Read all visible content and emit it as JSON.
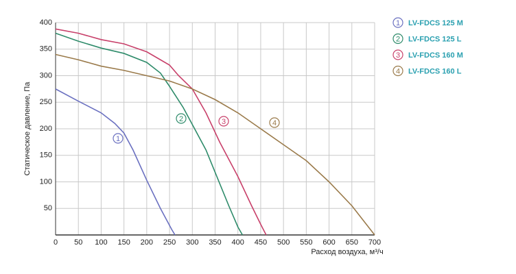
{
  "chart_data": {
    "type": "line",
    "x_label": "Расход воздуха, м³/ч",
    "y_label": "Статическое давление, Па",
    "xlim": [
      0,
      700
    ],
    "xticks": [
      0,
      50,
      100,
      150,
      200,
      250,
      300,
      350,
      400,
      450,
      500,
      550,
      600,
      650,
      700
    ],
    "ylim": [
      0,
      400
    ],
    "yticks": [
      50,
      100,
      150,
      200,
      250,
      300,
      350,
      400
    ],
    "grid": true,
    "series": [
      {
        "name": "LV-FDCS 125 M",
        "marker": "1",
        "color": "#6a70c0",
        "x": [
          0,
          50,
          100,
          130,
          150,
          170,
          200,
          230,
          255,
          262
        ],
        "values": [
          275,
          252,
          230,
          210,
          192,
          160,
          103,
          50,
          10,
          0
        ]
      },
      {
        "name": "LV-FDCS 125 L",
        "marker": "2",
        "color": "#2e8b6a",
        "x": [
          0,
          50,
          100,
          150,
          200,
          230,
          250,
          280,
          300,
          330,
          350,
          380,
          400,
          410
        ],
        "values": [
          380,
          365,
          352,
          342,
          325,
          305,
          280,
          240,
          208,
          160,
          118,
          55,
          15,
          0
        ]
      },
      {
        "name": "LV-FDCS 160 M",
        "marker": "3",
        "color": "#c8406a",
        "x": [
          0,
          50,
          100,
          150,
          200,
          230,
          250,
          270,
          300,
          330,
          360,
          400,
          430,
          450,
          462
        ],
        "values": [
          388,
          380,
          368,
          360,
          345,
          330,
          320,
          300,
          275,
          230,
          175,
          110,
          55,
          20,
          0
        ]
      },
      {
        "name": "LV-FDCS 160 L",
        "marker": "4",
        "color": "#9a7a4a",
        "x": [
          0,
          50,
          100,
          150,
          200,
          250,
          300,
          350,
          400,
          450,
          500,
          550,
          600,
          650,
          700
        ],
        "values": [
          340,
          330,
          318,
          310,
          300,
          290,
          275,
          255,
          230,
          200,
          170,
          140,
          100,
          55,
          0
        ]
      }
    ]
  }
}
